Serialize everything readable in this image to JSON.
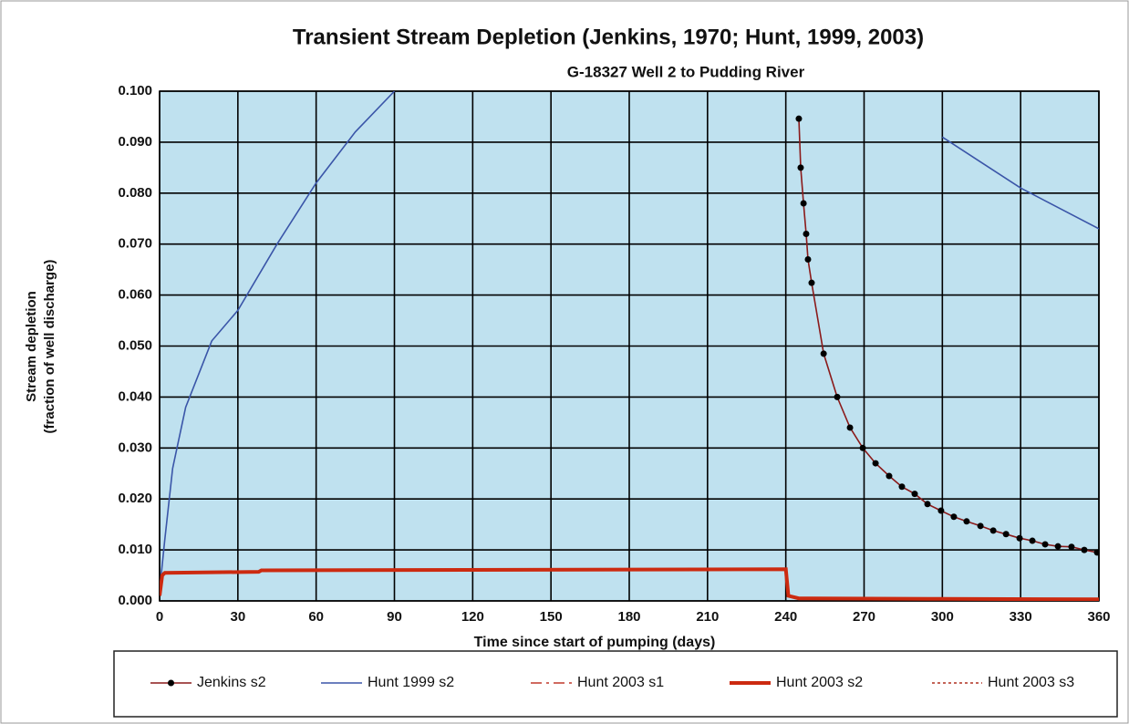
{
  "chart_data": {
    "type": "line",
    "title": "Transient Stream Depletion (Jenkins, 1970; Hunt, 1999, 2003)",
    "subtitle": "G-18327 Well 2 to Pudding River",
    "x_label": "Time since start of pumping (days)",
    "y_label": [
      "Stream depletion",
      "(fraction of well discharge)"
    ],
    "xlim": [
      0,
      360
    ],
    "xticks": [
      0,
      30,
      60,
      90,
      120,
      150,
      180,
      210,
      240,
      270,
      300,
      330,
      360
    ],
    "ylim": [
      0,
      0.1
    ],
    "yticks": [
      {
        "value": 0,
        "label": "0.000"
      },
      {
        "value": 0.01,
        "label": "0.010"
      },
      {
        "value": 0.02,
        "label": "0.020"
      },
      {
        "value": 0.03,
        "label": "0.030"
      },
      {
        "value": 0.04,
        "label": "0.040"
      },
      {
        "value": 0.05,
        "label": "0.050"
      },
      {
        "value": 0.06,
        "label": "0.060"
      },
      {
        "value": 0.07,
        "label": "0.070"
      },
      {
        "value": 0.08,
        "label": "0.080"
      },
      {
        "value": 0.09,
        "label": "0.090"
      },
      {
        "value": 0.1,
        "label": "0.100"
      }
    ],
    "grid": true,
    "legend": "bottom",
    "series": [
      {
        "name": "Jenkins s2",
        "color": "#8b1a1a",
        "marker_color": "#000000",
        "x": [
          245,
          245.7,
          246.8,
          247.8,
          248.5,
          249.9,
          254.5,
          259.7,
          264.6,
          269.5,
          274.4,
          279.6,
          284.5,
          289.4,
          294.3,
          299.5,
          304.4,
          309.3,
          314.6,
          319.5,
          324.4,
          329.6,
          334.5,
          339.4,
          344.3,
          349.5,
          354.4,
          359.3
        ],
        "values": [
          0.0946,
          0.085,
          0.078,
          0.072,
          0.067,
          0.0624,
          0.0485,
          0.04,
          0.034,
          0.03,
          0.027,
          0.0245,
          0.0224,
          0.021,
          0.019,
          0.0177,
          0.0165,
          0.0156,
          0.0147,
          0.0138,
          0.0131,
          0.0123,
          0.0118,
          0.0111,
          0.0107,
          0.0106,
          0.01,
          0.0095
        ]
      },
      {
        "name": "Hunt 1999 s2",
        "color": "#3a55a8",
        "x": [
          0,
          2,
          5,
          10,
          20,
          30,
          45,
          60,
          75,
          90,
          285,
          300,
          315,
          330,
          345,
          360
        ],
        "values": [
          0.002,
          0.012,
          0.026,
          0.038,
          0.051,
          0.057,
          0.07,
          0.082,
          0.092,
          0.1,
          null,
          0.091,
          0.086,
          0.081,
          0.077,
          0.073
        ]
      },
      {
        "name": "Hunt 2003 s1",
        "color": "#c0392b",
        "dash": "12 5 3 5",
        "x": [],
        "values": []
      },
      {
        "name": "Hunt 2003 s2",
        "color": "#cc2a10",
        "width": 4,
        "x": [
          0,
          1,
          2,
          38,
          39,
          240,
          241,
          245,
          300,
          360
        ],
        "values": [
          0.001,
          0.005,
          0.0055,
          0.0057,
          0.006,
          0.0062,
          0.001,
          0.0005,
          0.0004,
          0.0003
        ]
      },
      {
        "name": "Hunt 2003 s3",
        "color": "#b03020",
        "dash": "3 3",
        "x": [],
        "values": []
      }
    ]
  }
}
